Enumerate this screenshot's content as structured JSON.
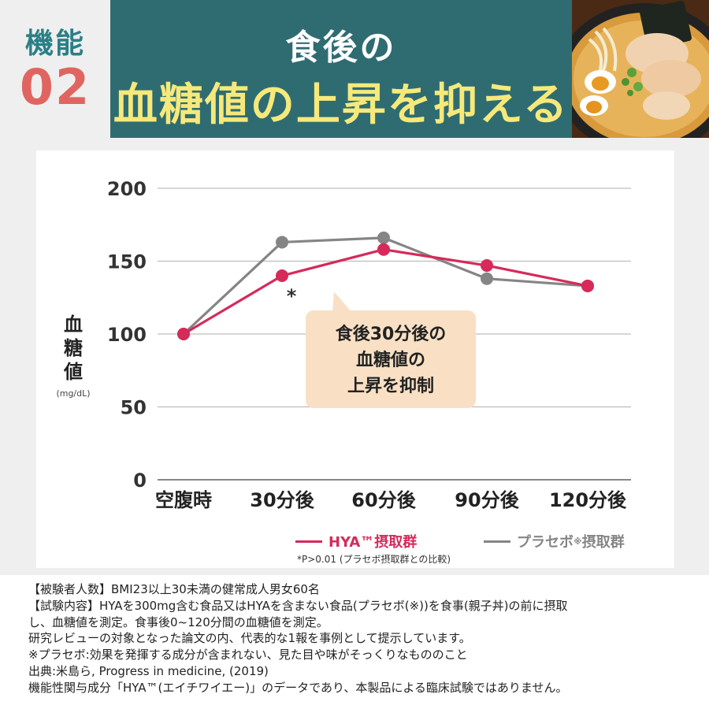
{
  "header": {
    "badge_label": "機能",
    "badge_number": "02",
    "title_line1": "食後の",
    "title_line2": "血糖値の上昇を抑える",
    "accent_teal": "#2e6c72",
    "accent_yellow": "#f6e97a",
    "accent_coral": "#e06560"
  },
  "chart_data": {
    "type": "line",
    "categories": [
      "空腹時",
      "30分後",
      "60分後",
      "90分後",
      "120分後"
    ],
    "series": [
      {
        "name": "HYA™摂取群",
        "values": [
          100,
          140,
          158,
          147,
          133
        ],
        "color": "#d52a5a"
      },
      {
        "name": "プラセボ※摂取群",
        "values": [
          100,
          163,
          166,
          138,
          133
        ],
        "color": "#858585"
      }
    ],
    "ylim": [
      0,
      200
    ],
    "yticks": [
      "0",
      "50",
      "100",
      "150",
      "200"
    ],
    "ytick_values": [
      0,
      50,
      100,
      150,
      200
    ],
    "ylabel": "血糖値",
    "yunit": "(mg/dL)",
    "grid": true,
    "significance_marker": "*",
    "annotation": "食後30分後の\n血糖値の\n上昇を抑制",
    "legend": {
      "hya_label": "HYA™摂取群",
      "placebo_label_main": "プラセボ",
      "placebo_label_mark": "※",
      "placebo_label_tail": "摂取群",
      "placement": "bottom-right"
    },
    "footnote": "*P>0.01 (プラセボ摂取群との比較)"
  },
  "notes": [
    "【被験者人数】BMI23以上30未満の健常成人男女60名",
    "【試験内容】HYAを300mg含む食品又はHYAを含まない食品(プラセボ(※))を食事(親子丼)の前に摂取",
    "し、血糖値を測定。食事後0~120分間の血糖値を測定。",
    "研究レビューの対象となった論文の内、代表的な1報を事例として提示しています。",
    "※プラセボ:効果を発揮する成分が含まれない、見た目や味がそっくりなもののこと",
    "出典:米島ら, Progress in medicine, (2019)",
    "機能性関与成分「HYA™(エイチワイエー)」のデータであり、本製品による臨床試験ではありません。"
  ]
}
